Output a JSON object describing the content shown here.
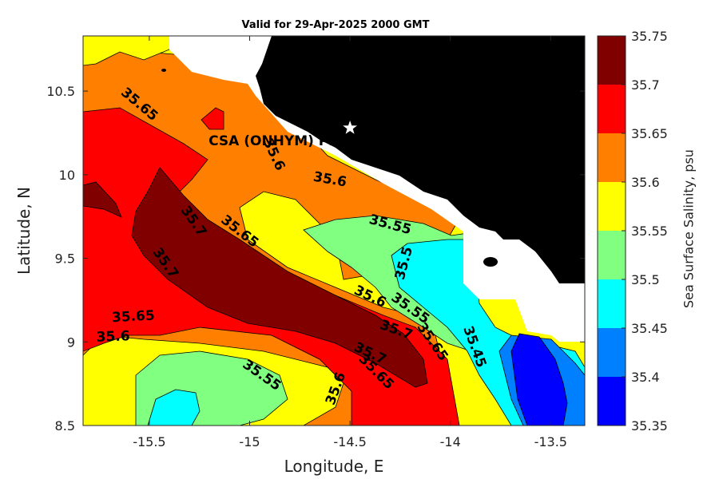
{
  "title": "Valid for 29-Apr-2025 2000 GMT",
  "xlabel": "Longitude, E",
  "ylabel": "Latitude, N",
  "colorbar_label": "Sea Surface Salinity, psu",
  "site_label": "CSA (ONHYM) PPL L",
  "chart_data": {
    "type": "heatmap",
    "xlim": [
      -15.83,
      -13.33
    ],
    "ylim": [
      8.5,
      10.83
    ],
    "x_ticks": [
      {
        "value": -15.5,
        "label": "-15.5"
      },
      {
        "value": -15,
        "label": "-15"
      },
      {
        "value": -14.5,
        "label": "-14.5"
      },
      {
        "value": -14,
        "label": "-14"
      },
      {
        "value": -13.5,
        "label": "-13.5"
      }
    ],
    "y_ticks": [
      {
        "value": 8.5,
        "label": "8.5"
      },
      {
        "value": 9,
        "label": "9"
      },
      {
        "value": 9.5,
        "label": "9.5"
      },
      {
        "value": 10,
        "label": "10"
      },
      {
        "value": 10.5,
        "label": "10.5"
      }
    ],
    "colorbar_levels": [
      "35.35",
      "35.4",
      "35.45",
      "35.5",
      "35.55",
      "35.6",
      "35.65",
      "35.7",
      "35.75"
    ],
    "colors": {
      "35.35-35.4": "#0000ff",
      "35.4-35.45": "#0080ff",
      "35.45-35.5": "#00ffff",
      "35.5-35.55": "#80ff80",
      "35.55-35.6": "#ffff00",
      "35.6-35.65": "#ff8000",
      "35.65-35.7": "#ff0000",
      "35.7-35.75": "#800000",
      "land": "#000000",
      "no_data": "#ffffff"
    },
    "site": {
      "lon": -14.5,
      "lat": 10.28
    },
    "contour_labels": [
      {
        "text": "35.65",
        "lon": -15.55,
        "lat": 10.42,
        "angle": 40
      },
      {
        "text": "35.6",
        "lon": -14.88,
        "lat": 10.12,
        "angle": 65
      },
      {
        "text": "35.6",
        "lon": -14.6,
        "lat": 9.97,
        "angle": 10
      },
      {
        "text": "35.7",
        "lon": -15.28,
        "lat": 9.72,
        "angle": 55
      },
      {
        "text": "35.65",
        "lon": -15.05,
        "lat": 9.66,
        "angle": 38
      },
      {
        "text": "35.55",
        "lon": -14.3,
        "lat": 9.7,
        "angle": 15
      },
      {
        "text": "35.7",
        "lon": -15.42,
        "lat": 9.47,
        "angle": 55
      },
      {
        "text": "35.5",
        "lon": -14.23,
        "lat": 9.47,
        "angle": -75
      },
      {
        "text": "35.6",
        "lon": -14.4,
        "lat": 9.27,
        "angle": 25
      },
      {
        "text": "35.55",
        "lon": -14.2,
        "lat": 9.2,
        "angle": 35
      },
      {
        "text": "35.65",
        "lon": -15.58,
        "lat": 9.15,
        "angle": -3
      },
      {
        "text": "35.6",
        "lon": -15.68,
        "lat": 9.03,
        "angle": -2
      },
      {
        "text": "35.7",
        "lon": -14.27,
        "lat": 9.07,
        "angle": 20
      },
      {
        "text": "35.65",
        "lon": -14.09,
        "lat": 9.0,
        "angle": 55
      },
      {
        "text": "35.45",
        "lon": -13.88,
        "lat": 8.97,
        "angle": 70
      },
      {
        "text": "35.7",
        "lon": -14.4,
        "lat": 8.93,
        "angle": 25
      },
      {
        "text": "35.65",
        "lon": -14.37,
        "lat": 8.82,
        "angle": 45
      },
      {
        "text": "35.55",
        "lon": -14.94,
        "lat": 8.8,
        "angle": 35
      },
      {
        "text": "35.6",
        "lon": -14.57,
        "lat": 8.72,
        "angle": -70
      }
    ]
  }
}
